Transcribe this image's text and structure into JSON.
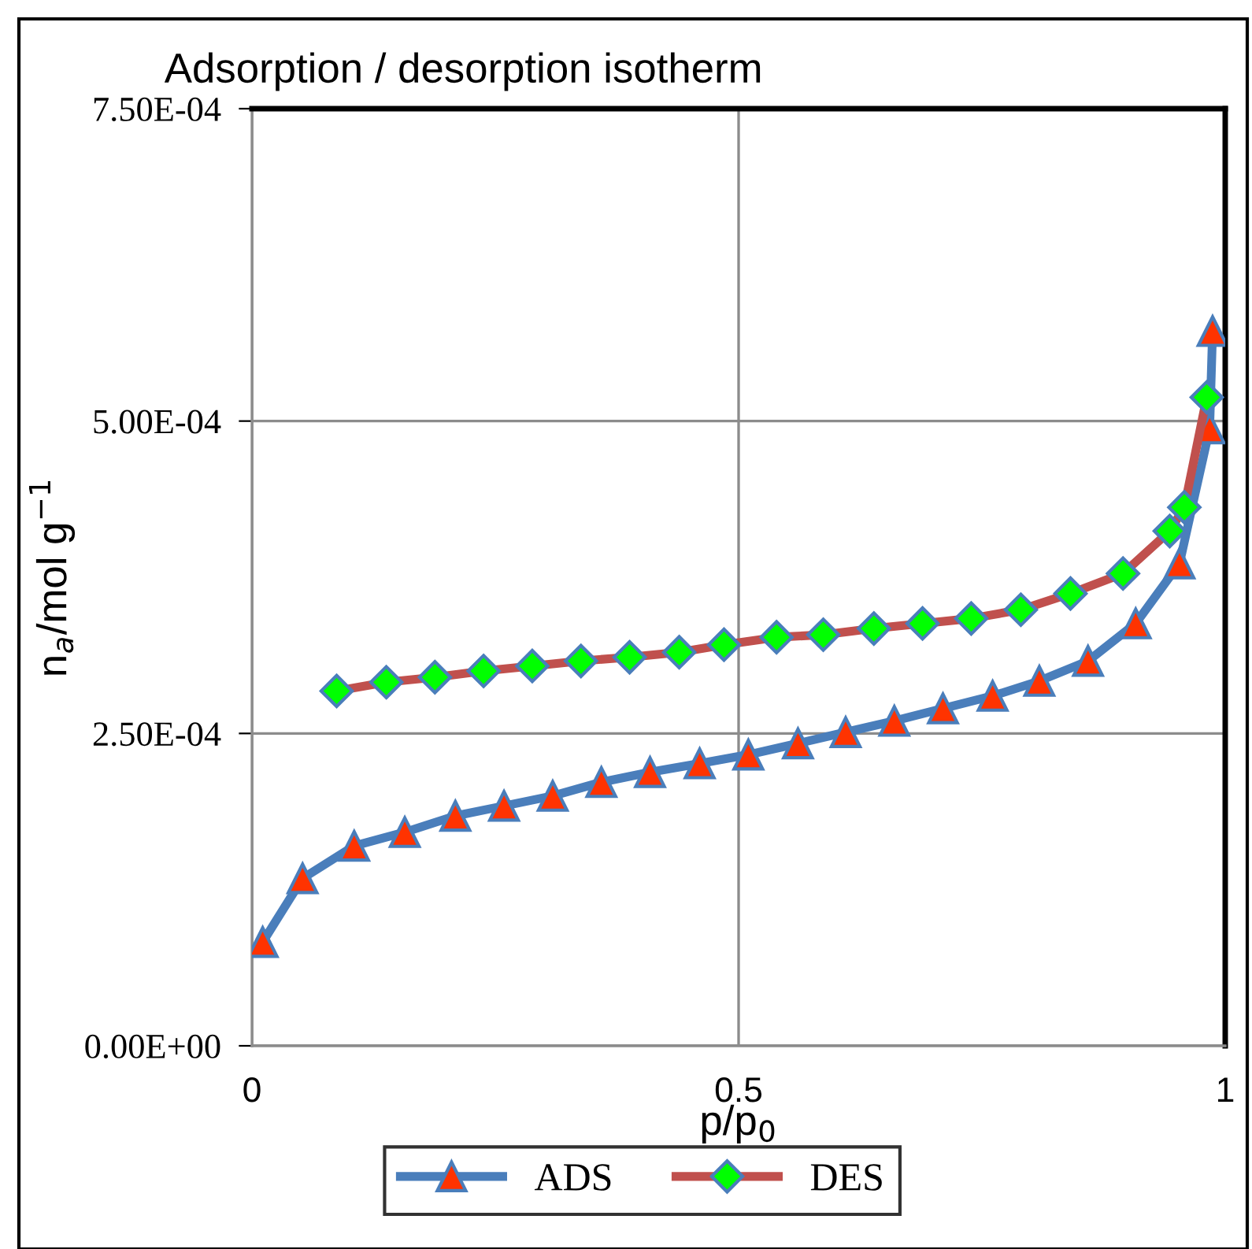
{
  "chart_data": {
    "type": "line",
    "title": "Adsorption / desorption isotherm",
    "xlabel": "p/p$_{0}$",
    "ylabel": "n$_{a}$/mol g$^{−1}$",
    "xlim": [
      0,
      1
    ],
    "xticks": [
      0,
      0.5,
      1
    ],
    "ylim": [
      0,
      0.00075
    ],
    "yticks": [
      {
        "value": 0,
        "label": "0.00E+00"
      },
      {
        "value": 0.00025,
        "label": "2.50E-04"
      },
      {
        "value": 0.0005,
        "label": "5.00E-04"
      },
      {
        "value": 0.00075,
        "label": "7.50E-04"
      }
    ],
    "grid": true,
    "legend": "bottom",
    "line_style": "solid",
    "series": [
      {
        "name": "ADS",
        "color": "#4a7ebb",
        "marker": "triangle",
        "x": [
          0.011,
          0.052,
          0.105,
          0.157,
          0.209,
          0.259,
          0.309,
          0.359,
          0.409,
          0.46,
          0.51,
          0.561,
          0.61,
          0.66,
          0.71,
          0.761,
          0.809,
          0.859,
          0.908,
          0.953,
          0.984,
          0.987
        ],
        "values": [
          8.3e-05,
          0.000134,
          0.00016,
          0.000171,
          0.000184,
          0.000192,
          0.0002,
          0.000211,
          0.000219,
          0.000226,
          0.000233,
          0.000242,
          0.000251,
          0.00026,
          0.00027,
          0.00028,
          0.000292,
          0.000308,
          0.000338,
          0.000386,
          0.000494,
          0.000572
        ]
      },
      {
        "name": "DES",
        "color": "#c0504d",
        "marker": "diamond",
        "x": [
          0.087,
          0.138,
          0.188,
          0.238,
          0.288,
          0.338,
          0.388,
          0.439,
          0.485,
          0.539,
          0.587,
          0.639,
          0.689,
          0.739,
          0.79,
          0.841,
          0.895,
          0.943,
          0.958,
          0.981
        ],
        "values": [
          0.000284,
          0.000291,
          0.000295,
          0.0003,
          0.000304,
          0.000308,
          0.000311,
          0.000315,
          0.000321,
          0.000327,
          0.000329,
          0.000334,
          0.000338,
          0.000342,
          0.000349,
          0.000362,
          0.000378,
          0.000412,
          0.000431,
          0.000519
        ]
      }
    ]
  }
}
